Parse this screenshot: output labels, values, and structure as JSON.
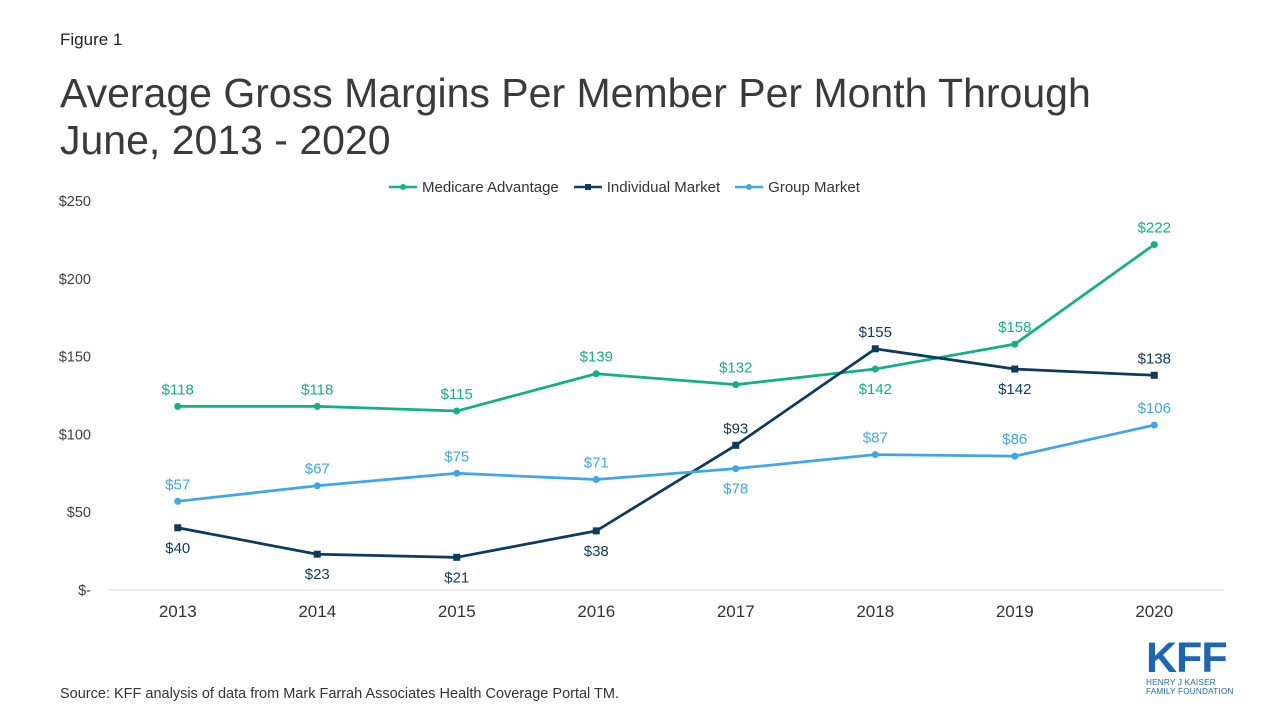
{
  "figure_label": "Figure 1",
  "title_line1": "Average Gross Margins Per Member Per Month Through",
  "title_line2": "June, 2013 - 2020",
  "source": "Source: KFF analysis of data from Mark Farrah Associates Health Coverage Portal TM.",
  "logo": {
    "mark": "KFF",
    "line1": "HENRY J KAISER",
    "line2": "FAMILY FOUNDATION"
  },
  "colors": {
    "medicare": "#0fb185",
    "individual": "#0d3b5e",
    "group": "#3fa6ec",
    "axis": "#d9d9d9",
    "brand": "#1f66b2"
  },
  "chart_data": {
    "type": "line",
    "categories": [
      "2013",
      "2014",
      "2015",
      "2016",
      "2017",
      "2018",
      "2019",
      "2020"
    ],
    "ylim": [
      0,
      250
    ],
    "yticks": [
      {
        "value": 0,
        "label": "$-"
      },
      {
        "value": 50,
        "label": "$50"
      },
      {
        "value": 100,
        "label": "$100"
      },
      {
        "value": 150,
        "label": "$150"
      },
      {
        "value": 200,
        "label": "$200"
      },
      {
        "value": 250,
        "label": "$250"
      }
    ],
    "legend_position": "top",
    "grid": false,
    "series": [
      {
        "name": "Medicare Advantage",
        "color": "#0fb185",
        "marker": "circle",
        "values": [
          118,
          118,
          115,
          139,
          132,
          142,
          158,
          222
        ],
        "labels": [
          "$118",
          "$118",
          "$115",
          "$139",
          "$132",
          "$142",
          "$158",
          "$222"
        ],
        "label_side": [
          "above",
          "above",
          "above",
          "above",
          "above",
          "below",
          "above",
          "above"
        ]
      },
      {
        "name": "Individual Market",
        "color": "#0d3b5e",
        "marker": "square",
        "values": [
          40,
          23,
          21,
          38,
          93,
          155,
          142,
          138
        ],
        "labels": [
          "$40",
          "$23",
          "$21",
          "$38",
          "$93",
          "$155",
          "$142",
          "$138"
        ],
        "label_side": [
          "below",
          "below",
          "below",
          "below",
          "above",
          "above",
          "below",
          "above"
        ]
      },
      {
        "name": "Group Market",
        "color": "#3fa6ec",
        "marker": "circle",
        "values": [
          57,
          67,
          75,
          71,
          78,
          87,
          86,
          106
        ],
        "labels": [
          "$57",
          "$67",
          "$75",
          "$71",
          "$78",
          "$87",
          "$86",
          "$106"
        ],
        "label_side": [
          "above",
          "above",
          "above",
          "above",
          "below",
          "above",
          "above",
          "above"
        ]
      }
    ]
  }
}
